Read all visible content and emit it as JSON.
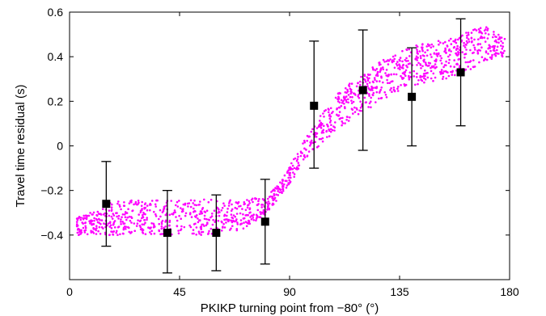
{
  "chart_data": {
    "type": "scatter",
    "xlabel": "PKIKP turning point from −80° (°)",
    "ylabel": "Travel time residual (s)",
    "xlim": [
      0,
      180
    ],
    "ylim": [
      -0.6,
      0.6
    ],
    "x_ticks": [
      0,
      45,
      90,
      135,
      180
    ],
    "y_ticks": [
      -0.4,
      -0.2,
      0,
      0.2,
      0.4,
      0.6
    ],
    "x_tick_labels": [
      "0",
      "45",
      "90",
      "135",
      "180"
    ],
    "y_tick_labels": [
      "−0.4",
      "−0.2",
      "0",
      "0.2",
      "0.4",
      "0.6"
    ],
    "grid": false,
    "colors": {
      "scatter": "#ff00ff",
      "binned": "#000000"
    },
    "scatter_trend": {
      "x": [
        3,
        20,
        40,
        60,
        70,
        80,
        85,
        90,
        95,
        100,
        110,
        120,
        130,
        140,
        150,
        160,
        170,
        178
      ],
      "y": [
        -0.36,
        -0.32,
        -0.32,
        -0.32,
        -0.31,
        -0.27,
        -0.21,
        -0.13,
        -0.04,
        0.04,
        0.16,
        0.24,
        0.31,
        0.36,
        0.38,
        0.41,
        0.46,
        0.44
      ],
      "spread": [
        0.04,
        0.08,
        0.08,
        0.08,
        0.07,
        0.04,
        0.03,
        0.04,
        0.05,
        0.06,
        0.08,
        0.09,
        0.09,
        0.09,
        0.09,
        0.09,
        0.08,
        0.04
      ]
    },
    "series": [
      {
        "type": "errorbar",
        "x": [
          15,
          40,
          60,
          80,
          100,
          120,
          140,
          160
        ],
        "y": [
          -0.26,
          -0.39,
          -0.39,
          -0.34,
          0.18,
          0.25,
          0.22,
          0.33
        ],
        "err_low": [
          -0.45,
          -0.57,
          -0.56,
          -0.53,
          -0.1,
          -0.02,
          0.0,
          0.09
        ],
        "err_high": [
          -0.07,
          -0.2,
          -0.22,
          -0.15,
          0.47,
          0.52,
          0.44,
          0.57
        ]
      }
    ]
  }
}
